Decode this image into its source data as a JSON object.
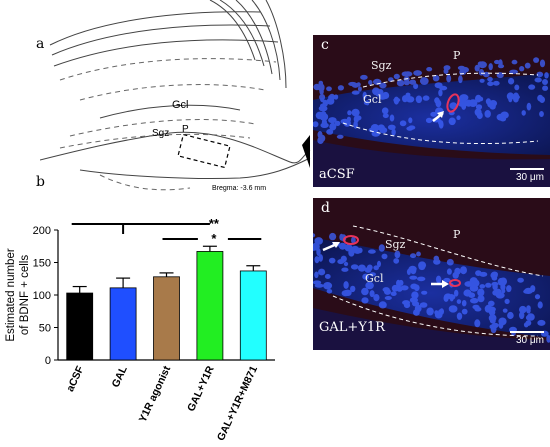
{
  "panels": {
    "a": "a",
    "b": "b",
    "c": "c",
    "d": "d"
  },
  "atlas": {
    "labels": {
      "gcl": "Gcl",
      "p": "P",
      "sgz": "Sgz"
    },
    "bregma": "Bregma: -3.6 mm"
  },
  "micrographs": {
    "c": {
      "condition": "aCSF",
      "sgz": "Sgz",
      "p": "P",
      "gcl": "Gcl",
      "scale": "30 μm"
    },
    "d": {
      "condition": "GAL+Y1R",
      "sgz": "Sgz",
      "p": "P",
      "gcl": "Gcl",
      "scale": "30 μm"
    }
  },
  "significance": {
    "double": "**",
    "single": "*"
  },
  "chart_data": {
    "type": "bar",
    "ylabel": "Estimated number of BDNF + cells",
    "ylabel_lines": [
      "Estimated number",
      "of BDNF + cells"
    ],
    "categories": [
      "aCSF",
      "GAL",
      "Y1R agonist",
      "GAL+Y1R",
      "GAL+Y1R+M871"
    ],
    "values": [
      103,
      111,
      128,
      167,
      137
    ],
    "errors": [
      10,
      15,
      6,
      8,
      8
    ],
    "colors": [
      "#000000",
      "#1f4fff",
      "#a87a4a",
      "#22ee22",
      "#22ffff"
    ],
    "ylim": [
      0,
      200
    ],
    "yticks": [
      0,
      50,
      100,
      150,
      200
    ],
    "grid": false
  }
}
